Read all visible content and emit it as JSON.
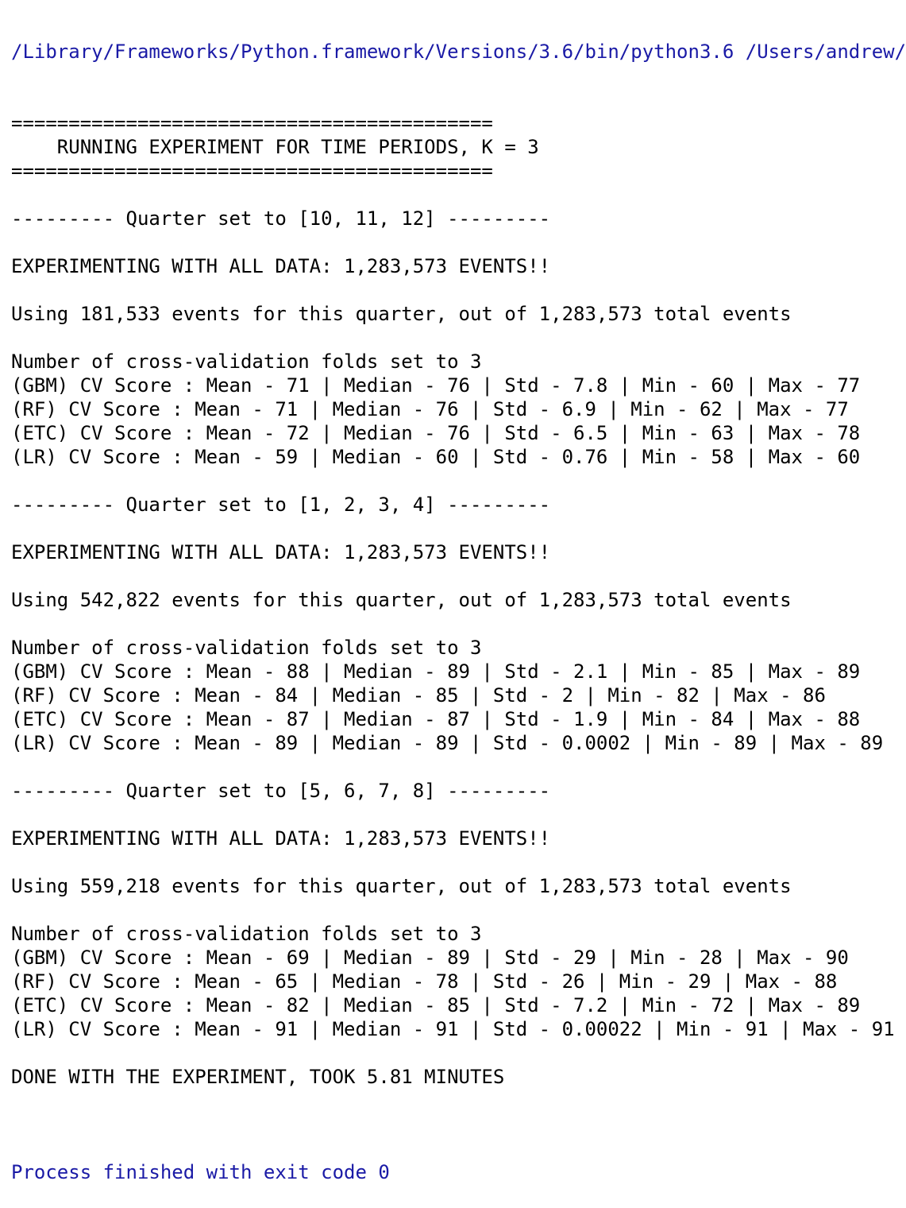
{
  "console": {
    "path_line": "/Library/Frameworks/Python.framework/Versions/3.6/bin/python3.6 /Users/andrew/",
    "lines": [
      "==========================================",
      "    RUNNING EXPERIMENT FOR TIME PERIODS, K = 3",
      "==========================================",
      "",
      "--------- Quarter set to [10, 11, 12] ---------",
      "",
      "EXPERIMENTING WITH ALL DATA: 1,283,573 EVENTS!!",
      "",
      "Using 181,533 events for this quarter, out of 1,283,573 total events",
      "",
      "Number of cross-validation folds set to 3",
      "(GBM) CV Score : Mean - 71 | Median - 76 | Std - 7.8 | Min - 60 | Max - 77",
      "(RF) CV Score : Mean - 71 | Median - 76 | Std - 6.9 | Min - 62 | Max - 77",
      "(ETC) CV Score : Mean - 72 | Median - 76 | Std - 6.5 | Min - 63 | Max - 78",
      "(LR) CV Score : Mean - 59 | Median - 60 | Std - 0.76 | Min - 58 | Max - 60",
      "",
      "--------- Quarter set to [1, 2, 3, 4] ---------",
      "",
      "EXPERIMENTING WITH ALL DATA: 1,283,573 EVENTS!!",
      "",
      "Using 542,822 events for this quarter, out of 1,283,573 total events",
      "",
      "Number of cross-validation folds set to 3",
      "(GBM) CV Score : Mean - 88 | Median - 89 | Std - 2.1 | Min - 85 | Max - 89",
      "(RF) CV Score : Mean - 84 | Median - 85 | Std - 2 | Min - 82 | Max - 86",
      "(ETC) CV Score : Mean - 87 | Median - 87 | Std - 1.9 | Min - 84 | Max - 88",
      "(LR) CV Score : Mean - 89 | Median - 89 | Std - 0.0002 | Min - 89 | Max - 89",
      "",
      "--------- Quarter set to [5, 6, 7, 8] ---------",
      "",
      "EXPERIMENTING WITH ALL DATA: 1,283,573 EVENTS!!",
      "",
      "Using 559,218 events for this quarter, out of 1,283,573 total events",
      "",
      "Number of cross-validation folds set to 3",
      "(GBM) CV Score : Mean - 69 | Median - 89 | Std - 29 | Min - 28 | Max - 90",
      "(RF) CV Score : Mean - 65 | Median - 78 | Std - 26 | Min - 29 | Max - 88",
      "(ETC) CV Score : Mean - 82 | Median - 85 | Std - 7.2 | Min - 72 | Max - 89",
      "(LR) CV Score : Mean - 91 | Median - 91 | Std - 0.00022 | Min - 91 | Max - 91",
      "",
      "DONE WITH THE EXPERIMENT, TOOK 5.81 MINUTES",
      ""
    ],
    "exit_line": "Process finished with exit code 0",
    "colors": {
      "text": "#000000",
      "system": "#1a1aa6",
      "background": "#ffffff"
    }
  }
}
